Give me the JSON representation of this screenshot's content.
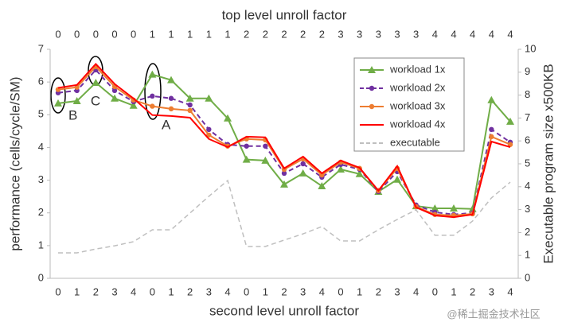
{
  "chart_data": {
    "type": "line",
    "title": "top level unroll factor",
    "x_label": "second level unroll factor",
    "y_label": "performance (cells/cycle/SM)",
    "y2_label": "Executable program size x500KB",
    "categories": [
      "0",
      "1",
      "2",
      "3",
      "4",
      "0",
      "1",
      "2",
      "3",
      "4",
      "0",
      "1",
      "2",
      "3",
      "4",
      "0",
      "1",
      "2",
      "3",
      "4",
      "0",
      "1",
      "2",
      "3",
      "4"
    ],
    "top_categories": [
      "0",
      "0",
      "0",
      "0",
      "0",
      "1",
      "1",
      "1",
      "1",
      "1",
      "2",
      "2",
      "2",
      "2",
      "2",
      "3",
      "3",
      "3",
      "3",
      "3",
      "4",
      "4",
      "4",
      "4",
      "4"
    ],
    "ylim": [
      0,
      7
    ],
    "yticks": [
      0,
      1,
      2,
      3,
      4,
      5,
      6,
      7
    ],
    "y2lim": [
      0,
      10
    ],
    "y2ticks": [
      0,
      1,
      2,
      3,
      4,
      5,
      6,
      7,
      8,
      9,
      10
    ],
    "legend": "upper right",
    "series": [
      {
        "name": "workload 1x",
        "color": "#70ad47",
        "marker": "triangle",
        "dashed": false,
        "values": [
          5.35,
          5.42,
          5.98,
          5.5,
          5.28,
          6.23,
          6.06,
          5.5,
          5.5,
          4.89,
          3.63,
          3.6,
          2.87,
          3.21,
          2.82,
          3.33,
          3.19,
          2.65,
          3.02,
          2.21,
          2.14,
          2.14,
          2.12,
          5.45,
          4.79
        ]
      },
      {
        "name": "workload 2x",
        "color": "#7030a0",
        "marker": "circle",
        "dashed": true,
        "values": [
          5.67,
          5.74,
          6.37,
          5.74,
          5.4,
          5.57,
          5.5,
          5.3,
          4.55,
          4.09,
          4.04,
          4.04,
          3.21,
          3.5,
          3.09,
          3.48,
          3.33,
          2.65,
          3.26,
          2.24,
          2.02,
          1.95,
          2.0,
          4.55,
          4.16
        ]
      },
      {
        "name": "workload 3x",
        "color": "#ed7d31",
        "marker": "circle",
        "dashed": false,
        "values": [
          5.77,
          5.84,
          6.47,
          5.86,
          5.45,
          5.26,
          5.18,
          5.13,
          4.38,
          4.04,
          4.26,
          4.23,
          3.33,
          3.65,
          3.16,
          3.55,
          3.36,
          2.68,
          3.36,
          2.19,
          1.95,
          1.92,
          1.97,
          4.33,
          4.09
        ]
      },
      {
        "name": "workload 4x",
        "color": "#ff0000",
        "marker": "none",
        "dashed": false,
        "values": [
          5.82,
          5.91,
          6.55,
          5.94,
          5.5,
          4.99,
          4.96,
          4.91,
          4.26,
          4.01,
          4.33,
          4.31,
          3.36,
          3.72,
          3.21,
          3.6,
          3.38,
          2.68,
          3.43,
          2.17,
          1.92,
          1.87,
          1.95,
          4.18,
          4.01
        ]
      },
      {
        "name": "executable",
        "color": "#bfbfbf",
        "marker": "none",
        "dashed": true,
        "axis": "y2",
        "values": [
          1.11,
          1.11,
          1.28,
          1.42,
          1.6,
          2.12,
          2.12,
          2.85,
          3.58,
          4.27,
          1.39,
          1.39,
          1.67,
          1.94,
          2.26,
          1.63,
          1.63,
          2.12,
          2.57,
          2.99,
          1.88,
          1.88,
          2.5,
          3.51,
          4.2
        ]
      }
    ],
    "annotations": [
      "B",
      "C",
      "A"
    ],
    "watermark": "@稀土掘金技术社区"
  }
}
